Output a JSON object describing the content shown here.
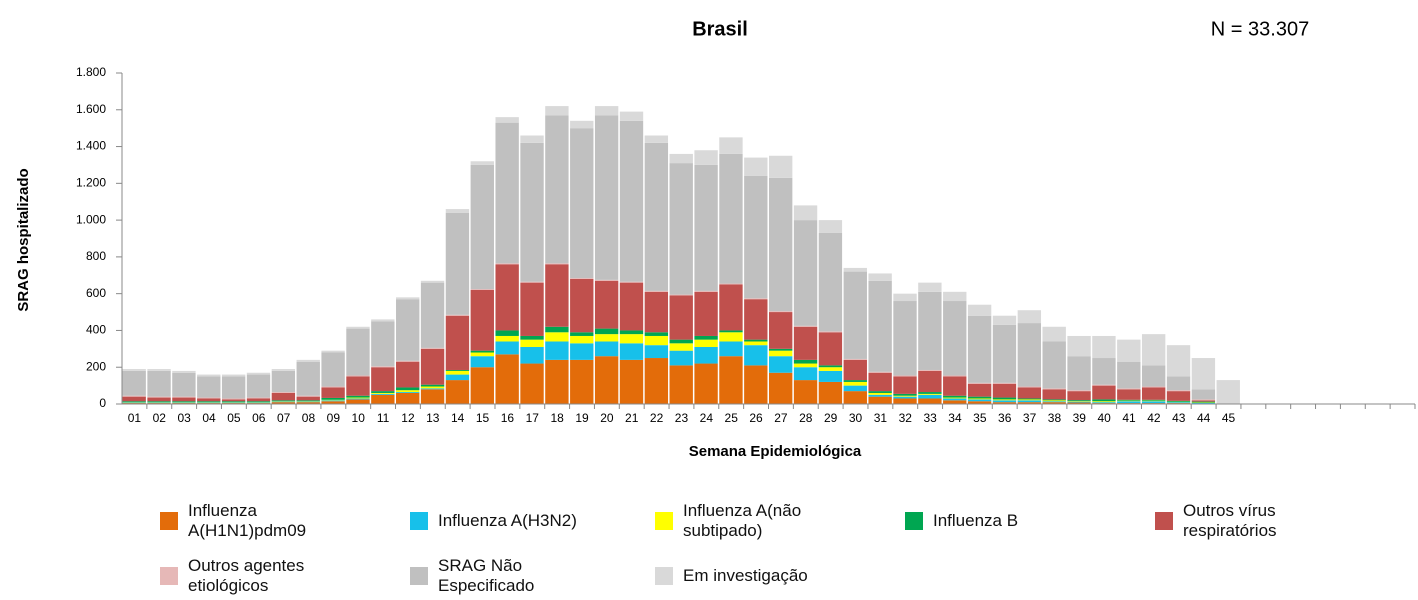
{
  "chart_data": {
    "type": "stacked_bar",
    "title": "Brasil",
    "annotation": "N =  33.307",
    "x_label": "Semana Epidemiológica",
    "y_label": "SRAG hospitalizado",
    "categories": [
      "01",
      "02",
      "03",
      "04",
      "05",
      "06",
      "07",
      "08",
      "09",
      "10",
      "11",
      "12",
      "13",
      "14",
      "15",
      "16",
      "17",
      "18",
      "19",
      "20",
      "21",
      "22",
      "23",
      "24",
      "25",
      "26",
      "27",
      "28",
      "29",
      "30",
      "31",
      "32",
      "33",
      "34",
      "35",
      "36",
      "37",
      "38",
      "39",
      "40",
      "41",
      "42",
      "43",
      "44",
      "45",
      null,
      null,
      null,
      null,
      null,
      null,
      null
    ],
    "ylim": [
      0,
      1800
    ],
    "yticks": [
      0,
      200,
      400,
      600,
      800,
      {
        "value": 1000,
        "label": "1.000"
      },
      {
        "value": 1200,
        "label": "1.200"
      },
      {
        "value": 1400,
        "label": "1.400"
      },
      {
        "value": 1600,
        "label": "1.600"
      },
      {
        "value": 1800,
        "label": "1.800"
      }
    ],
    "grid": false,
    "legend": "bottom",
    "series": [
      {
        "name": "Influenza A(H1N1)pdm09",
        "color": "#e36c0a",
        "values": [
          5,
          5,
          5,
          5,
          5,
          5,
          10,
          10,
          15,
          25,
          50,
          60,
          80,
          130,
          200,
          270,
          220,
          240,
          240,
          260,
          240,
          250,
          210,
          220,
          260,
          210,
          170,
          130,
          120,
          70,
          40,
          30,
          30,
          20,
          15,
          10,
          10,
          10,
          8,
          5,
          5,
          5,
          5,
          3,
          0,
          null,
          null,
          null,
          null,
          null,
          null,
          null
        ]
      },
      {
        "name": "Influenza A(H3N2)",
        "color": "#17c0ea",
        "values": [
          3,
          3,
          3,
          3,
          3,
          3,
          3,
          3,
          5,
          5,
          5,
          5,
          5,
          30,
          60,
          70,
          90,
          100,
          90,
          80,
          90,
          70,
          80,
          90,
          80,
          110,
          90,
          70,
          60,
          30,
          10,
          10,
          20,
          10,
          10,
          10,
          10,
          5,
          5,
          5,
          10,
          10,
          5,
          3,
          0,
          null,
          null,
          null,
          null,
          null,
          null,
          null
        ]
      },
      {
        "name": "Influenza A(não subtipado)",
        "color": "#ffff00",
        "values": [
          2,
          2,
          2,
          2,
          2,
          2,
          2,
          2,
          3,
          5,
          5,
          10,
          10,
          20,
          20,
          30,
          40,
          50,
          40,
          40,
          50,
          50,
          40,
          40,
          50,
          20,
          30,
          20,
          20,
          20,
          10,
          5,
          5,
          5,
          5,
          5,
          5,
          5,
          3,
          5,
          3,
          3,
          2,
          2,
          0,
          null,
          null,
          null,
          null,
          null,
          null,
          null
        ]
      },
      {
        "name": "Influenza B",
        "color": "#00a651",
        "values": [
          5,
          5,
          5,
          5,
          5,
          5,
          5,
          5,
          10,
          10,
          10,
          15,
          10,
          5,
          10,
          30,
          20,
          30,
          20,
          30,
          20,
          20,
          20,
          20,
          10,
          10,
          10,
          20,
          10,
          10,
          10,
          10,
          10,
          10,
          10,
          10,
          5,
          5,
          5,
          10,
          5,
          5,
          5,
          5,
          0,
          null,
          null,
          null,
          null,
          null,
          null,
          null
        ]
      },
      {
        "name": "Outros vírus respiratórios",
        "color": "#c0504d",
        "values": [
          25,
          20,
          20,
          15,
          10,
          15,
          40,
          20,
          57,
          105,
          130,
          140,
          195,
          295,
          330,
          360,
          290,
          340,
          290,
          260,
          260,
          220,
          240,
          240,
          250,
          220,
          200,
          180,
          180,
          110,
          100,
          95,
          115,
          105,
          70,
          75,
          60,
          55,
          49,
          75,
          57,
          67,
          53,
          7,
          0,
          null,
          null,
          null,
          null,
          null,
          null,
          null
        ]
      },
      {
        "name": "Outros agentes etiológicos",
        "color": "#e6b8b7",
        "values": [
          5,
          5,
          5,
          5,
          5,
          5,
          5,
          5,
          5,
          5,
          5,
          5,
          5,
          5,
          5,
          5,
          5,
          5,
          5,
          5,
          5,
          5,
          5,
          5,
          5,
          5,
          5,
          5,
          5,
          5,
          5,
          5,
          5,
          5,
          5,
          5,
          5,
          5,
          5,
          5,
          5,
          5,
          5,
          5,
          0,
          null,
          null,
          null,
          null,
          null,
          null,
          null
        ]
      },
      {
        "name": "SRAG Não Especificado",
        "color": "#c0c0c0",
        "values": [
          135,
          140,
          130,
          115,
          120,
          125,
          115,
          185,
          185,
          255,
          245,
          335,
          355,
          555,
          675,
          765,
          755,
          805,
          815,
          895,
          875,
          805,
          715,
          685,
          705,
          665,
          725,
          575,
          535,
          475,
          495,
          405,
          425,
          405,
          365,
          315,
          345,
          255,
          185,
          145,
          145,
          115,
          75,
          55,
          0,
          null,
          null,
          null,
          null,
          null,
          null,
          null
        ]
      },
      {
        "name": "Em investigação",
        "color": "#d9d9d9",
        "values": [
          10,
          10,
          10,
          10,
          10,
          10,
          10,
          10,
          10,
          10,
          10,
          10,
          10,
          20,
          20,
          30,
          40,
          50,
          40,
          50,
          50,
          40,
          50,
          80,
          90,
          100,
          120,
          80,
          70,
          20,
          40,
          40,
          50,
          50,
          60,
          50,
          70,
          80,
          110,
          120,
          120,
          170,
          170,
          170,
          130,
          null,
          null,
          null,
          null,
          null,
          null,
          null
        ]
      }
    ]
  }
}
